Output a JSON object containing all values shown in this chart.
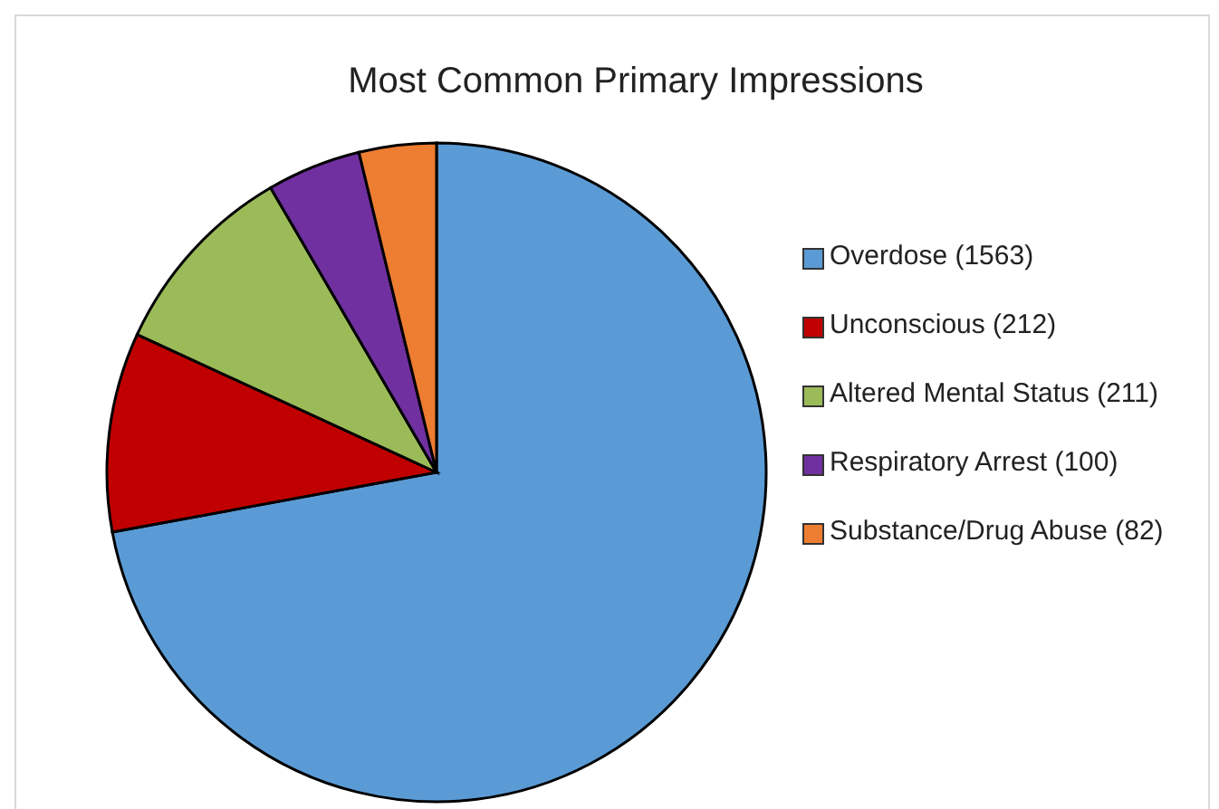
{
  "chart_data": {
    "type": "pie",
    "title": "Most Common Primary Impressions",
    "categories": [
      "Overdose (1563)",
      "Unconscious (212)",
      "Altered Mental Status (211)",
      "Respiratory Arrest (100)",
      "Substance/Drug Abuse (82)"
    ],
    "values": [
      1563,
      212,
      211,
      100,
      82
    ],
    "colors": [
      "#5b9bd5",
      "#c00000",
      "#9bbb59",
      "#7030a0",
      "#ed7d31"
    ],
    "legend": "right"
  }
}
